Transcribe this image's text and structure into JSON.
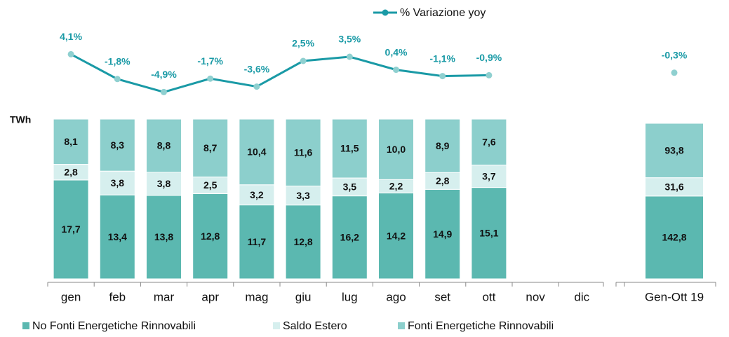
{
  "chart_data": [
    {
      "type": "bar",
      "stacked": "percent",
      "y_label": "TWh",
      "categories": [
        "gen",
        "feb",
        "mar",
        "apr",
        "mag",
        "giu",
        "lug",
        "ago",
        "set",
        "ott",
        "nov",
        "dic"
      ],
      "y2lim": [
        -8,
        7
      ],
      "series": [
        {
          "name": "No Fonti Energetiche Rinnovabili",
          "color": "#5bb8b0",
          "values": [
            17.7,
            13.4,
            13.8,
            12.8,
            11.7,
            12.8,
            16.2,
            14.2,
            14.9,
            15.1,
            null,
            null
          ],
          "value_labels": [
            "17,7",
            "13,4",
            "13,8",
            "12,8",
            "11,7",
            "12,8",
            "16,2",
            "14,2",
            "14,9",
            "15,1",
            null,
            null
          ]
        },
        {
          "name": "Saldo Estero",
          "color": "#d6efee",
          "values": [
            2.8,
            3.8,
            3.8,
            2.5,
            3.2,
            3.3,
            3.5,
            2.2,
            2.8,
            3.7,
            null,
            null
          ],
          "value_labels": [
            "2,8",
            "3,8",
            "3,8",
            "2,5",
            "3,2",
            "3,3",
            "3,5",
            "2,2",
            "2,8",
            "3,7",
            null,
            null
          ]
        },
        {
          "name": "Fonti Energetiche Rinnovabili",
          "color": "#8ccfcc",
          "values": [
            8.1,
            8.3,
            8.8,
            8.7,
            10.4,
            11.6,
            11.5,
            10.0,
            8.9,
            7.6,
            null,
            null
          ],
          "value_labels": [
            "8,1",
            "8,3",
            "8,8",
            "8,7",
            "10,4",
            "11,6",
            "11,5",
            "10,0",
            "8,9",
            "7,6",
            null,
            null
          ]
        },
        {
          "name": "% Variazione yoy",
          "type": "line",
          "axis": "y2",
          "color": "#1a9aa6",
          "marker_color": "#8fd0d0",
          "values": [
            4.1,
            -1.8,
            -4.9,
            -1.7,
            -3.6,
            2.5,
            3.5,
            0.4,
            -1.1,
            -0.9,
            null,
            null
          ],
          "value_labels": [
            "4,1%",
            "-1,8%",
            "-4,9%",
            "-1,7%",
            "-3,6%",
            "2,5%",
            "3,5%",
            "0,4%",
            "-1,1%",
            "-0,9%",
            null,
            null
          ]
        }
      ]
    },
    {
      "type": "bar",
      "stacked": "percent",
      "categories": [
        "Gen-Ott 19"
      ],
      "y2lim": [
        -8,
        7
      ],
      "series": [
        {
          "color": "#5bb8b0",
          "values": [
            142.8
          ],
          "value_labels": [
            "142,8"
          ]
        },
        {
          "color": "#d6efee",
          "values": [
            31.6
          ],
          "value_labels": [
            "31,6"
          ]
        },
        {
          "color": "#8ccfcc",
          "values": [
            93.8
          ],
          "value_labels": [
            "93,8"
          ]
        },
        {
          "type": "line",
          "axis": "y2",
          "color": "#1a9aa6",
          "marker_color": "#8fd0d0",
          "values": [
            -0.3
          ],
          "value_labels": [
            "-0,3%"
          ]
        }
      ]
    }
  ]
}
